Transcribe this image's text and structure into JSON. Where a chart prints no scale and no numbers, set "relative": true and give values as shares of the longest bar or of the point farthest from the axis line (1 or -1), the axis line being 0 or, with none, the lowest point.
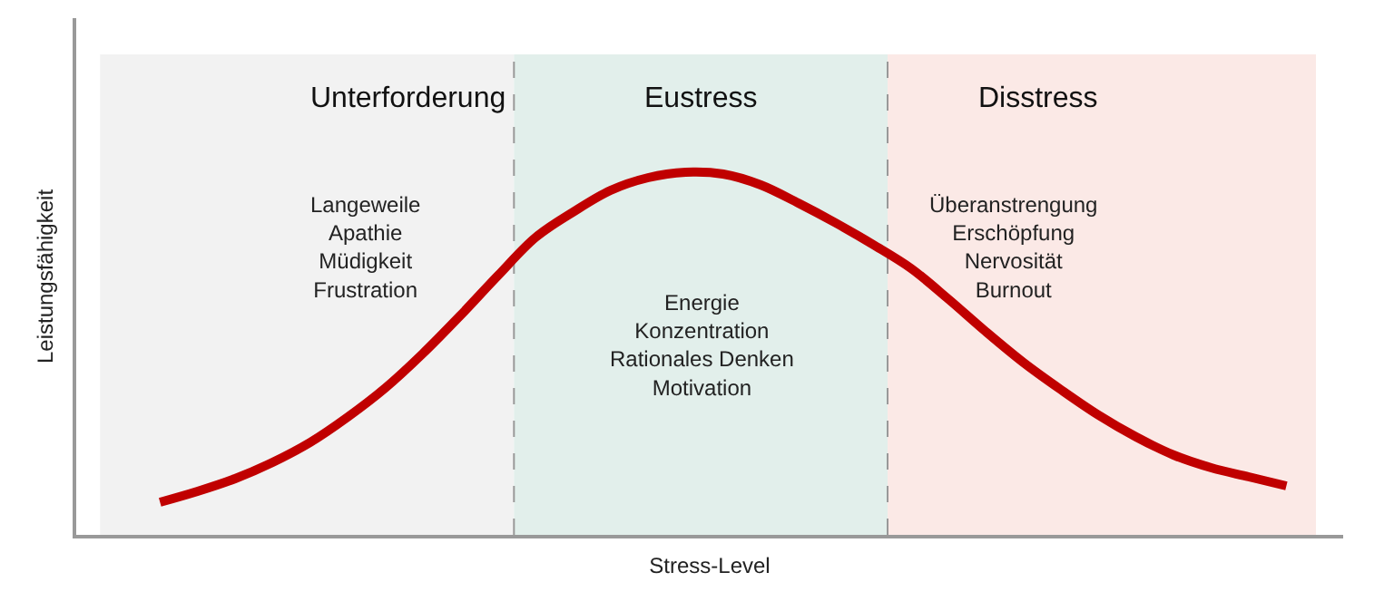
{
  "chart_data": {
    "type": "line",
    "relative": true,
    "xlabel": "Stress-Level",
    "ylabel": "Leistungsfähigkeit",
    "categories": [
      null,
      null,
      null,
      null,
      null,
      null,
      null,
      null,
      null,
      null,
      null,
      null,
      null,
      null,
      null,
      null,
      null,
      null,
      null,
      null,
      null,
      null,
      null,
      null,
      null,
      null,
      null,
      null,
      null,
      null,
      null
    ],
    "series": [
      {
        "color": "#c00000",
        "values": [
          0.09,
          0.12,
          0.155,
          0.2,
          0.255,
          0.325,
          0.405,
          0.5,
          0.605,
          0.715,
          0.82,
          0.89,
          0.95,
          0.985,
          1.0,
          0.995,
          0.965,
          0.915,
          0.86,
          0.8,
          0.735,
          0.65,
          0.56,
          0.475,
          0.4,
          0.33,
          0.27,
          0.22,
          0.185,
          0.16,
          0.135
        ]
      }
    ],
    "annotations": [
      "Unterforderung",
      "Langeweile\nApathie\nMüdigkeit\nFrustration",
      "Eustress",
      "Energie\nKonzentration\nRationales Denken\nMotivation",
      "Disstress",
      "Überanstrengung\nErschöpfung\nNervosität\nBurnout"
    ],
    "grid": false,
    "marker": "none",
    "line_style": "solid"
  }
}
